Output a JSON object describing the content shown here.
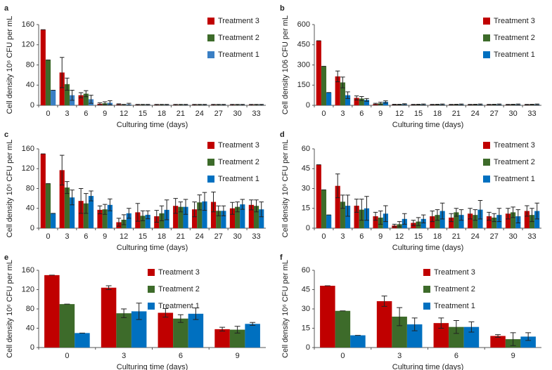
{
  "chart_data": [
    {
      "type": "bar",
      "panel": "a",
      "y_label": "Cell density 10⁶ CFU per mL",
      "x_label": "Culturing time (days)",
      "categories": [
        "0",
        "3",
        "6",
        "9",
        "12",
        "15",
        "18",
        "21",
        "24",
        "27",
        "30",
        "33"
      ],
      "ylim": [
        0,
        160
      ],
      "yticks": [
        0,
        40,
        80,
        120,
        160
      ],
      "series": [
        {
          "name": "Treatment 3",
          "color": "#c00000",
          "values": [
            150,
            65,
            20,
            3,
            2,
            1,
            1,
            1,
            1,
            1,
            1,
            1
          ],
          "errors": [
            0,
            30,
            5,
            2,
            1,
            1,
            1,
            1,
            1,
            1,
            1,
            1
          ]
        },
        {
          "name": "Treatment 2",
          "color": "#3d6b2a",
          "values": [
            90,
            42,
            23,
            4,
            1,
            1,
            1,
            1,
            1,
            1,
            1,
            1
          ],
          "errors": [
            0,
            12,
            6,
            3,
            1,
            1,
            1,
            1,
            1,
            1,
            1,
            1
          ]
        },
        {
          "name": "Treatment 1",
          "color": "#3a7fc4",
          "values": [
            30,
            20,
            12,
            5,
            2,
            1,
            1,
            1,
            1,
            1,
            1,
            1
          ],
          "errors": [
            0,
            10,
            8,
            4,
            2,
            1,
            1,
            1,
            1,
            1,
            1,
            1
          ]
        }
      ]
    },
    {
      "type": "bar",
      "panel": "b",
      "y_label": "Cell density 106 CFU per mL",
      "x_label": "Culturing time (days)",
      "categories": [
        "0",
        "3",
        "6",
        "9",
        "12",
        "15",
        "18",
        "21",
        "24",
        "27",
        "30",
        "33"
      ],
      "ylim": [
        0,
        600
      ],
      "yticks": [
        0,
        150,
        300,
        450,
        600
      ],
      "series": [
        {
          "name": "Treatment 3",
          "color": "#c00000",
          "values": [
            480,
            215,
            55,
            10,
            5,
            4,
            4,
            4,
            4,
            4,
            4,
            4
          ],
          "errors": [
            0,
            40,
            15,
            5,
            3,
            3,
            3,
            3,
            3,
            3,
            3,
            3
          ]
        },
        {
          "name": "Treatment 2",
          "color": "#3d6b2a",
          "values": [
            290,
            170,
            50,
            15,
            5,
            5,
            5,
            5,
            5,
            5,
            5,
            5
          ],
          "errors": [
            0,
            40,
            15,
            8,
            3,
            3,
            3,
            3,
            3,
            3,
            3,
            3
          ]
        },
        {
          "name": "Treatment 1",
          "color": "#0070c0",
          "values": [
            95,
            75,
            40,
            25,
            8,
            6,
            6,
            6,
            6,
            6,
            6,
            6
          ],
          "errors": [
            0,
            25,
            10,
            8,
            4,
            4,
            4,
            4,
            4,
            4,
            4,
            4
          ]
        }
      ]
    },
    {
      "type": "bar",
      "panel": "c",
      "y_label": "Cell density 10⁶ CFU per mL",
      "x_label": "Culturing time (days)",
      "categories": [
        "0",
        "3",
        "6",
        "9",
        "12",
        "15",
        "18",
        "21",
        "24",
        "27",
        "30",
        "33"
      ],
      "ylim": [
        0,
        160
      ],
      "yticks": [
        0,
        40,
        80,
        120,
        160
      ],
      "series": [
        {
          "name": "Treatment 3",
          "color": "#c00000",
          "values": [
            150,
            117,
            55,
            37,
            12,
            32,
            24,
            45,
            38,
            53,
            40,
            47
          ],
          "errors": [
            0,
            30,
            25,
            8,
            8,
            18,
            12,
            15,
            15,
            20,
            12,
            10
          ]
        },
        {
          "name": "Treatment 2",
          "color": "#3d6b2a",
          "values": [
            90,
            82,
            50,
            38,
            17,
            25,
            30,
            43,
            52,
            35,
            43,
            45
          ],
          "errors": [
            0,
            12,
            20,
            10,
            10,
            10,
            15,
            10,
            15,
            10,
            10,
            12
          ]
        },
        {
          "name": "Treatment 1",
          "color": "#0070c0",
          "values": [
            30,
            62,
            65,
            47,
            30,
            27,
            37,
            43,
            54,
            35,
            48,
            38
          ],
          "errors": [
            0,
            15,
            10,
            12,
            10,
            8,
            20,
            15,
            18,
            10,
            10,
            15
          ]
        }
      ]
    },
    {
      "type": "bar",
      "panel": "d",
      "y_label": "Cell density 10⁶ CFU per mL",
      "x_label": "Culturing time (days)",
      "categories": [
        "0",
        "3",
        "6",
        "9",
        "12",
        "15",
        "18",
        "21",
        "24",
        "27",
        "30",
        "33"
      ],
      "ylim": [
        0,
        60
      ],
      "yticks": [
        0,
        15,
        30,
        45,
        60
      ],
      "series": [
        {
          "name": "Treatment 3",
          "color": "#c00000",
          "values": [
            48,
            32,
            17,
            9,
            2,
            4,
            9,
            8,
            11,
            9,
            11,
            13
          ],
          "errors": [
            0,
            9,
            5,
            3,
            1,
            2,
            4,
            3,
            4,
            3,
            4,
            4
          ]
        },
        {
          "name": "Treatment 2",
          "color": "#3d6b2a",
          "values": [
            29,
            20,
            14,
            8,
            3,
            5,
            10,
            12,
            10,
            8,
            12,
            10
          ],
          "errors": [
            0,
            5,
            8,
            5,
            2,
            3,
            4,
            3,
            4,
            3,
            4,
            5
          ]
        },
        {
          "name": "Treatment 1",
          "color": "#0070c0",
          "values": [
            10,
            17,
            15,
            11,
            7,
            7,
            13,
            10,
            14,
            10,
            9,
            13
          ],
          "errors": [
            0,
            8,
            9,
            6,
            4,
            3,
            6,
            4,
            7,
            5,
            5,
            6
          ]
        }
      ]
    },
    {
      "type": "bar",
      "panel": "e",
      "y_label": "Cell density 10⁶ CFU per mL",
      "x_label": "Culturing time (days)",
      "categories": [
        "0",
        "3",
        "6",
        "9"
      ],
      "ylim": [
        0,
        160
      ],
      "yticks": [
        0,
        40,
        80,
        120,
        160
      ],
      "series": [
        {
          "name": "Treatment 3",
          "color": "#c00000",
          "values": [
            150,
            124,
            72,
            38
          ],
          "errors": [
            0,
            4,
            9,
            4
          ]
        },
        {
          "name": "Treatment 2",
          "color": "#3d6b2a",
          "values": [
            90,
            71,
            60,
            37
          ],
          "errors": [
            0,
            9,
            8,
            7
          ]
        },
        {
          "name": "Treatment 1",
          "color": "#0070c0",
          "values": [
            30,
            75,
            70,
            49
          ],
          "errors": [
            0,
            17,
            12,
            3
          ]
        }
      ]
    },
    {
      "type": "bar",
      "panel": "f",
      "y_label": "Cell density 10⁶ CFU per mL",
      "x_label": "Culturing time (days)",
      "categories": [
        "0",
        "3",
        "6",
        "9"
      ],
      "ylim": [
        0,
        60
      ],
      "yticks": [
        0,
        15,
        30,
        45,
        60
      ],
      "series": [
        {
          "name": "Treatment 3",
          "color": "#c00000",
          "values": [
            48,
            36,
            19,
            9
          ],
          "errors": [
            0,
            4,
            4,
            1
          ]
        },
        {
          "name": "Treatment 2",
          "color": "#3d6b2a",
          "values": [
            28.5,
            24,
            16,
            6.5
          ],
          "errors": [
            0,
            7,
            5,
            5
          ]
        },
        {
          "name": "Treatment 1",
          "color": "#0070c0",
          "values": [
            9.5,
            18,
            16,
            8.5
          ],
          "errors": [
            0,
            5,
            4,
            3
          ]
        }
      ]
    }
  ]
}
